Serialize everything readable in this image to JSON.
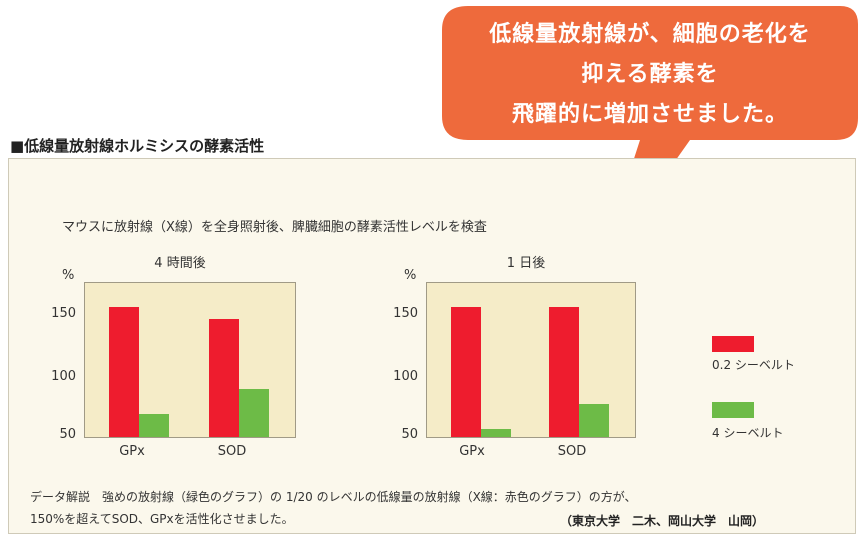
{
  "callout": {
    "lines": [
      "低線量放射線が、細胞の老化を",
      "抑える酵素を",
      "飛躍的に増加させました。"
    ],
    "color": "#ee6a3c"
  },
  "section_title": "■低線量放射線ホルミシスの酵素活性",
  "subtitle": "マウスに放射線（X線）を全身照射後、脾臓細胞の酵素活性レベルを検査",
  "legend": [
    {
      "label": "0.2 シーベルト",
      "color": "#ee1c2e"
    },
    {
      "label": "4 シーベルト",
      "color": "#6dbb47"
    }
  ],
  "chart_data": [
    {
      "type": "bar",
      "title": "4 時間後",
      "ylabel": "%",
      "categories": [
        "GPx",
        "SOD"
      ],
      "yticks": [
        50,
        100,
        150
      ],
      "ylim": [
        50,
        175
      ],
      "series": [
        {
          "name": "0.2 シーベルト",
          "values": [
            155,
            145
          ]
        },
        {
          "name": "4 シーベルト",
          "values": [
            69,
            89
          ]
        }
      ]
    },
    {
      "type": "bar",
      "title": "1 日後",
      "ylabel": "%",
      "categories": [
        "GPx",
        "SOD"
      ],
      "yticks": [
        50,
        100,
        150
      ],
      "ylim": [
        50,
        175
      ],
      "series": [
        {
          "name": "0.2 シーベルト",
          "values": [
            155,
            155
          ]
        },
        {
          "name": "4 シーベルト",
          "values": [
            57,
            77
          ]
        }
      ]
    }
  ],
  "note": {
    "line1": "データ解説　強めの放射線（緑色のグラフ）の 1/20 のレベルの低線量の放射線（X線：赤色のグラフ）の方が、",
    "line2": "150%を超えてSOD、GPxを活性化させました。",
    "credit": "（東京大学　二木、岡山大学　山岡）"
  }
}
